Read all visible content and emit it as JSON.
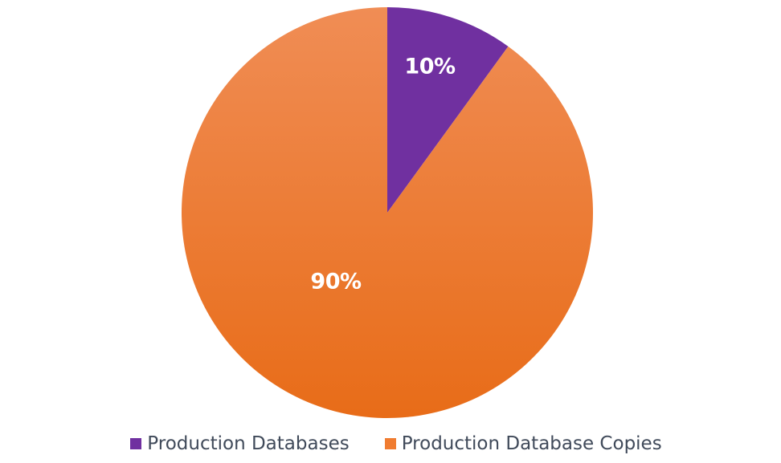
{
  "chart_data": {
    "type": "pie",
    "title": "",
    "categories": [
      "Production Databases",
      "Production Database Copies"
    ],
    "values": [
      10,
      90
    ],
    "labels": [
      "10%",
      "90%"
    ],
    "colors": [
      "#7030A0",
      "#F07C30"
    ],
    "start_angle_deg": 0,
    "direction": "clockwise",
    "legend_position": "bottom"
  },
  "legend": [
    {
      "label": "Production Databases",
      "color": "#7030A0"
    },
    {
      "label": "Production Database Copies",
      "color": "#F07C30"
    }
  ]
}
